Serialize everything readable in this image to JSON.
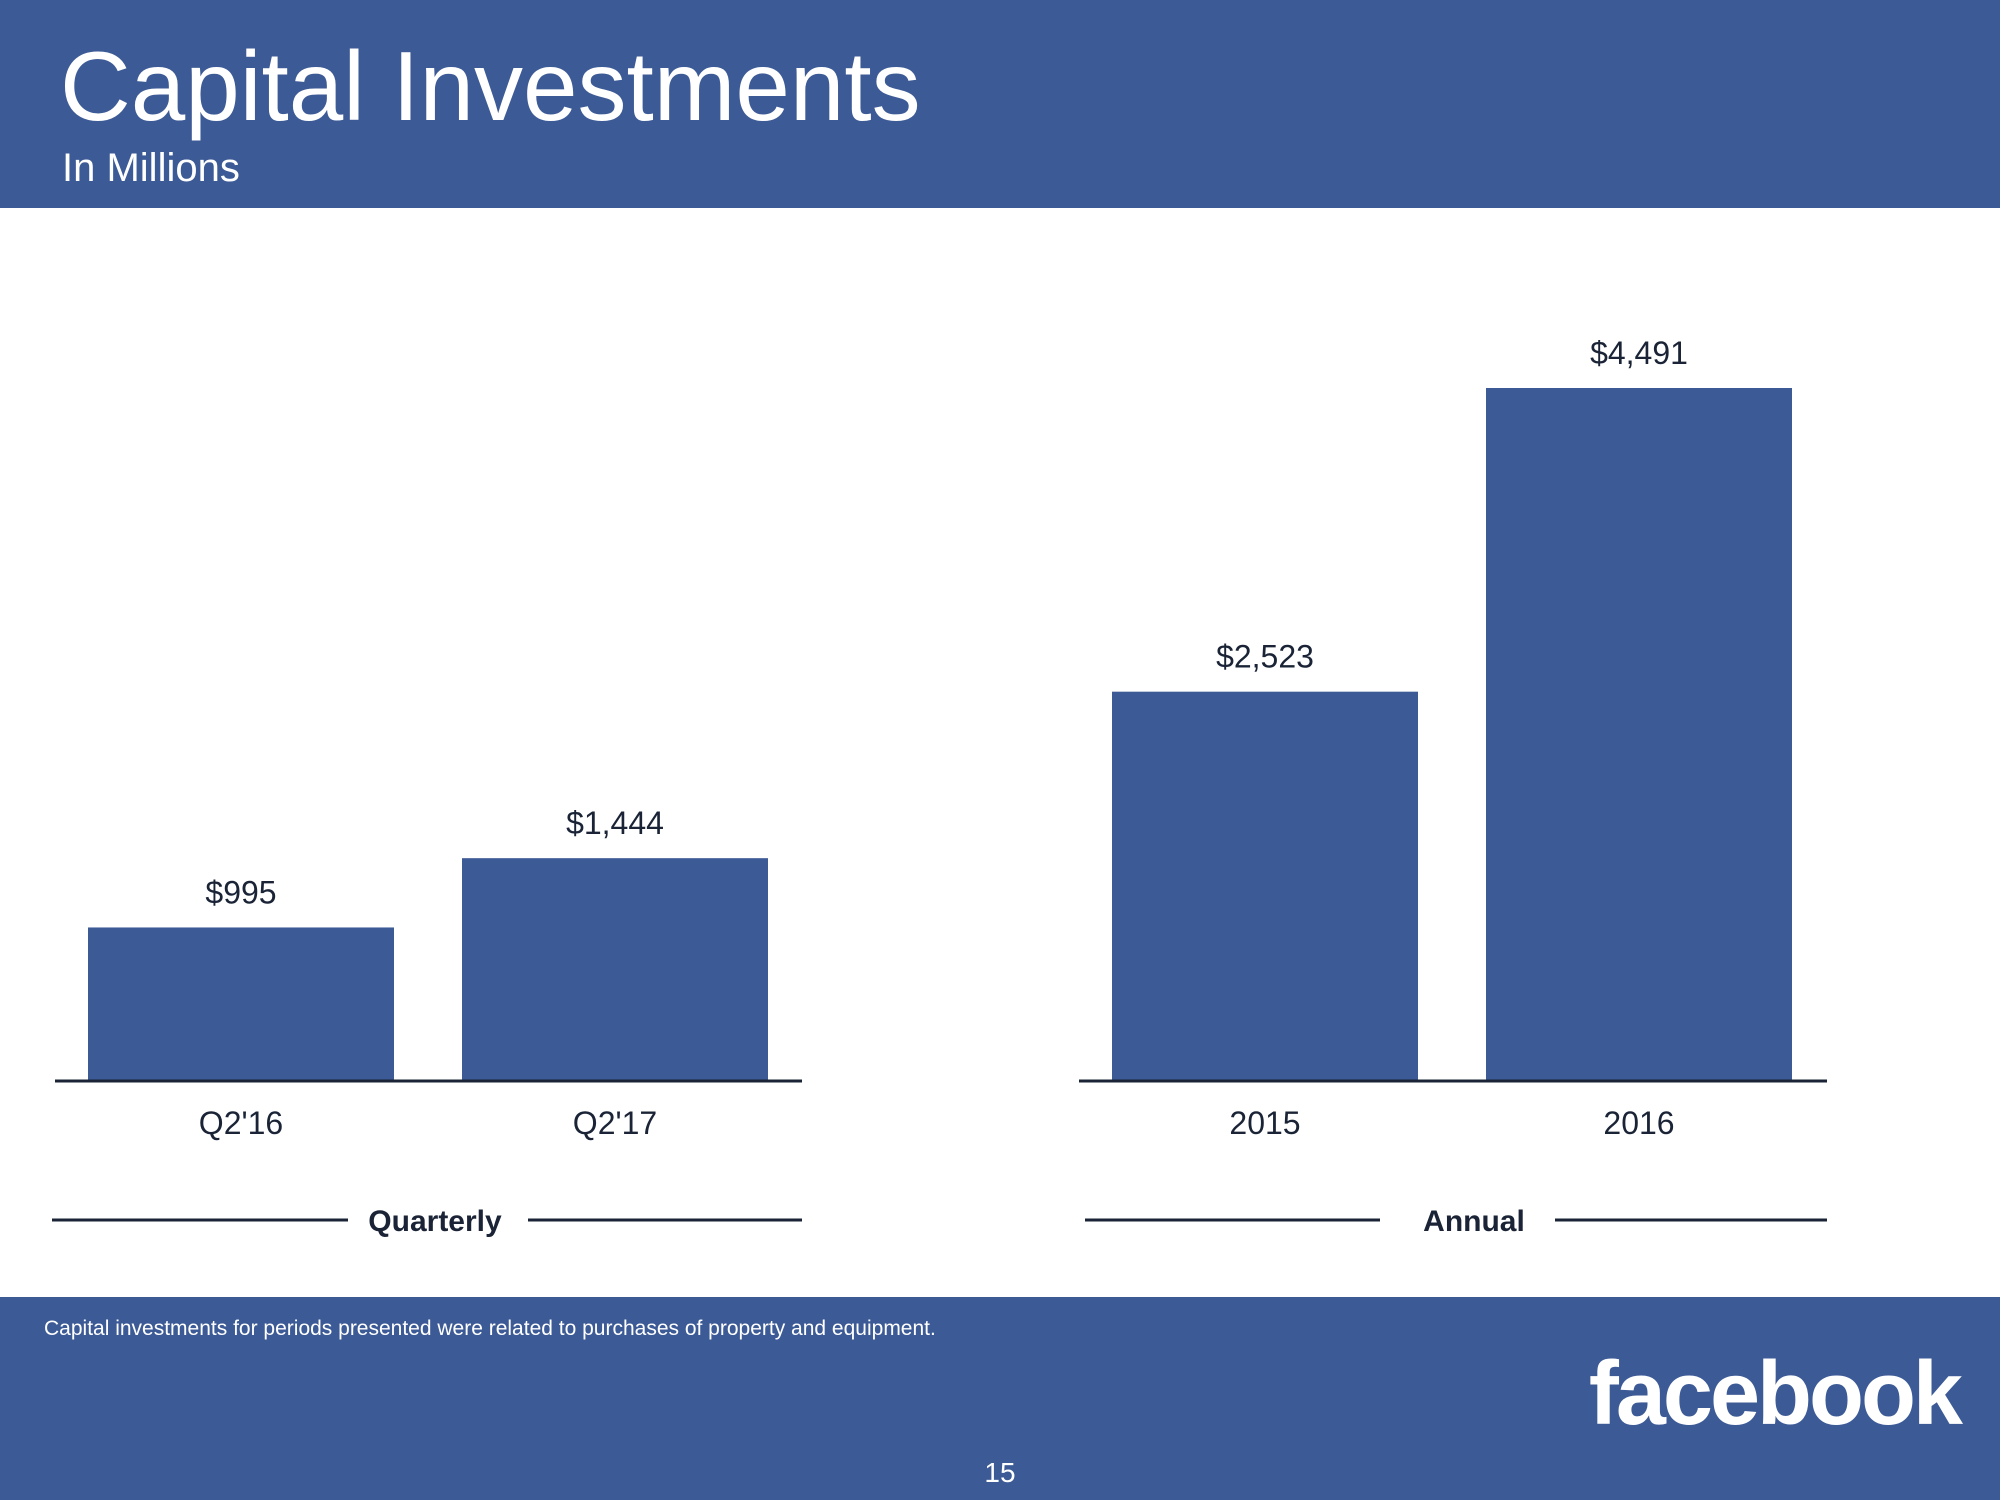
{
  "header": {
    "title": "Capital Investments",
    "subtitle": "In Millions"
  },
  "chart_data": [
    {
      "type": "bar",
      "group_label": "Quarterly",
      "categories": [
        "Q2'16",
        "Q2'17"
      ],
      "values": [
        995,
        1444
      ],
      "value_labels": [
        "$995",
        "$1,444"
      ],
      "ylabel": "",
      "ylim": [
        0,
        4600
      ],
      "grid": false,
      "color": "#3c5a96"
    },
    {
      "type": "bar",
      "group_label": "Annual",
      "categories": [
        "2015",
        "2016"
      ],
      "values": [
        2523,
        4491
      ],
      "value_labels": [
        "$2,523",
        "$4,491"
      ],
      "ylabel": "",
      "ylim": [
        0,
        4600
      ],
      "grid": false,
      "color": "#3c5a96"
    }
  ],
  "footer": {
    "footnote": "Capital investments for periods presented were related to purchases of property and equipment.",
    "logo_text": "facebook",
    "page_number": "15"
  },
  "colors": {
    "brand": "#3c5a96",
    "axis": "#1a2436",
    "text": "#1a2436"
  }
}
